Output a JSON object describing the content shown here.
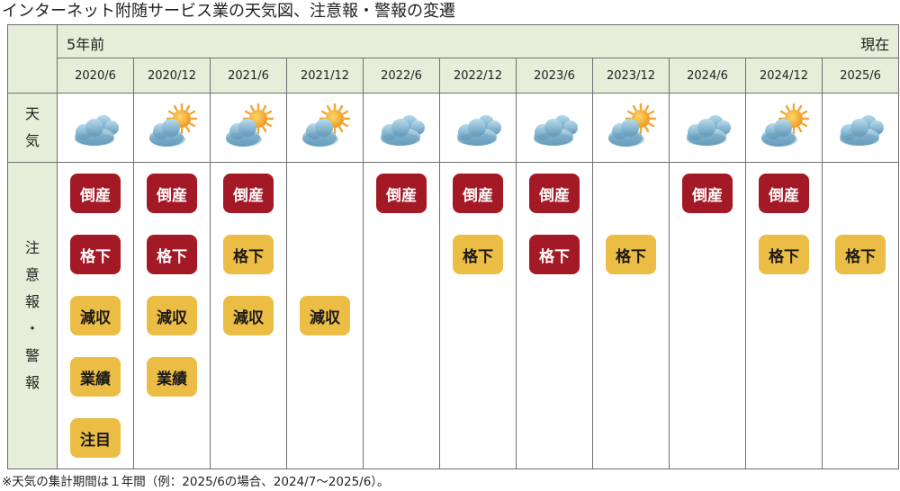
{
  "title": "インターネット附随サービス業の天気図、注意報・警報の変遷",
  "header": {
    "past_label": "5年前",
    "now_label": "現在",
    "weather_label_chars": [
      "天",
      "気"
    ],
    "alert_label_chars": [
      "注",
      "意",
      "報",
      "・",
      "警",
      "報"
    ]
  },
  "periods": [
    {
      "date": "2020/6",
      "weather": "cloudy",
      "alerts": [
        {
          "text": "倒産",
          "level": "red"
        },
        {
          "text": "格下",
          "level": "red"
        },
        {
          "text": "減収",
          "level": "yellow"
        },
        {
          "text": "業績",
          "level": "yellow"
        },
        {
          "text": "注目",
          "level": "yellow"
        }
      ]
    },
    {
      "date": "2020/12",
      "weather": "sun-cloud",
      "alerts": [
        {
          "text": "倒産",
          "level": "red"
        },
        {
          "text": "格下",
          "level": "red"
        },
        {
          "text": "減収",
          "level": "yellow"
        },
        {
          "text": "業績",
          "level": "yellow"
        },
        null
      ]
    },
    {
      "date": "2021/6",
      "weather": "sun-cloud",
      "alerts": [
        {
          "text": "倒産",
          "level": "red"
        },
        {
          "text": "格下",
          "level": "yellow"
        },
        {
          "text": "減収",
          "level": "yellow"
        },
        null,
        null
      ]
    },
    {
      "date": "2021/12",
      "weather": "sun-cloud",
      "alerts": [
        null,
        null,
        {
          "text": "減収",
          "level": "yellow"
        },
        null,
        null
      ]
    },
    {
      "date": "2022/6",
      "weather": "cloudy",
      "alerts": [
        {
          "text": "倒産",
          "level": "red"
        },
        null,
        null,
        null,
        null
      ]
    },
    {
      "date": "2022/12",
      "weather": "cloudy",
      "alerts": [
        {
          "text": "倒産",
          "level": "red"
        },
        {
          "text": "格下",
          "level": "yellow"
        },
        null,
        null,
        null
      ]
    },
    {
      "date": "2023/6",
      "weather": "cloudy",
      "alerts": [
        {
          "text": "倒産",
          "level": "red"
        },
        {
          "text": "格下",
          "level": "red"
        },
        null,
        null,
        null
      ]
    },
    {
      "date": "2023/12",
      "weather": "sun-cloud",
      "alerts": [
        null,
        {
          "text": "格下",
          "level": "yellow"
        },
        null,
        null,
        null
      ]
    },
    {
      "date": "2024/6",
      "weather": "cloudy",
      "alerts": [
        {
          "text": "倒産",
          "level": "red"
        },
        null,
        null,
        null,
        null
      ]
    },
    {
      "date": "2024/12",
      "weather": "sun-cloud",
      "alerts": [
        {
          "text": "倒産",
          "level": "red"
        },
        {
          "text": "格下",
          "level": "yellow"
        },
        null,
        null,
        null
      ]
    },
    {
      "date": "2025/6",
      "weather": "cloudy",
      "alerts": [
        null,
        {
          "text": "格下",
          "level": "yellow"
        },
        null,
        null,
        null
      ]
    }
  ],
  "colors": {
    "header_bg": "#e5eed8",
    "badge_red": "#a31a26",
    "badge_yellow": "#ecbd45",
    "cloud": "#7fb2cf",
    "sun": "#f2a531"
  },
  "footnote": "※天気の集計期間は１年間（例：2025/6の場合、2024/7～2025/6）。"
}
